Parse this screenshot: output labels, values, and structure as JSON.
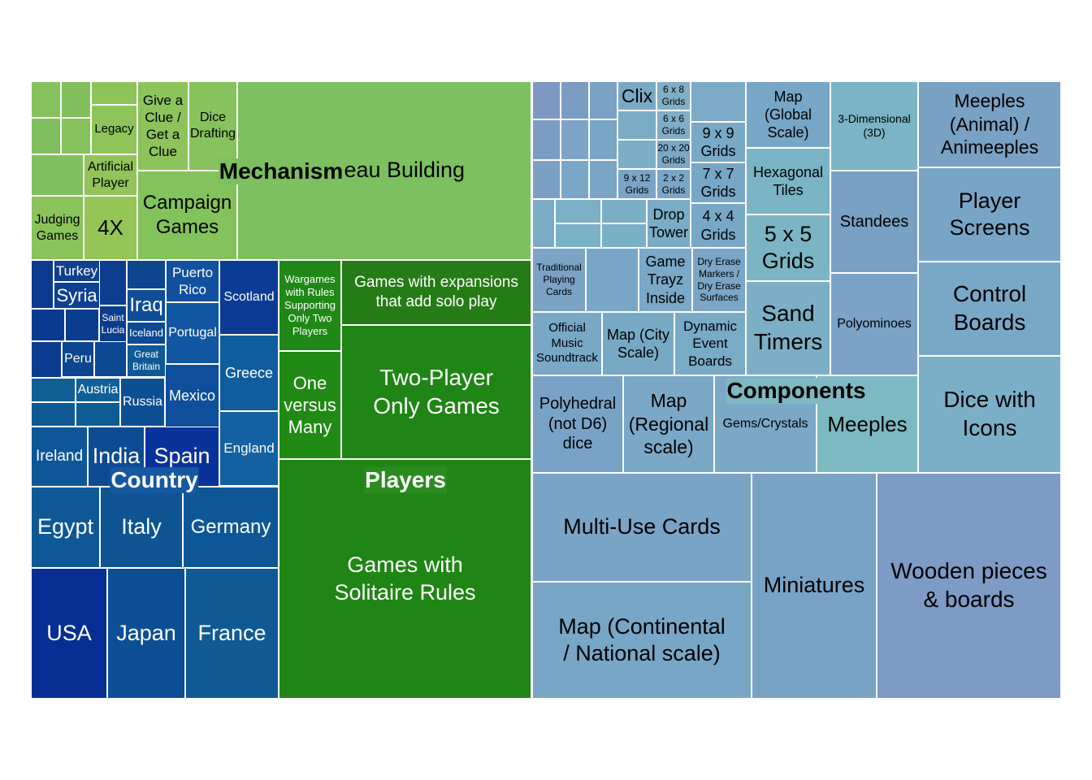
{
  "chart_data": {
    "type": "treemap",
    "title": "",
    "colors": {
      "Mechanism": "#7dc05f",
      "Country": "#0c4a8f",
      "Players": "#1f8514",
      "Components": "#79a3c6"
    },
    "groups": [
      {
        "name": "Mechanism",
        "leaves": [
          {
            "label": "Tableau Building"
          },
          {
            "label": "Give a Clue / Get a Clue"
          },
          {
            "label": "Dice Drafting"
          },
          {
            "label": "Legacy"
          },
          {
            "label": "Artificial Player"
          },
          {
            "label": "Campaign Games"
          },
          {
            "label": "Judging Games"
          },
          {
            "label": "4X"
          },
          {
            "label": ""
          },
          {
            "label": ""
          },
          {
            "label": ""
          },
          {
            "label": ""
          },
          {
            "label": ""
          },
          {
            "label": ""
          },
          {
            "label": ""
          }
        ]
      },
      {
        "name": "Country",
        "leaves": [
          {
            "label": "Turkey"
          },
          {
            "label": "Syria"
          },
          {
            "label": "Saint Lucia"
          },
          {
            "label": "Iraq"
          },
          {
            "label": "Puerto Rico"
          },
          {
            "label": "Scotland"
          },
          {
            "label": "Iceland"
          },
          {
            "label": "Portugal"
          },
          {
            "label": "Peru"
          },
          {
            "label": "Great Britain"
          },
          {
            "label": "Greece"
          },
          {
            "label": "Austria"
          },
          {
            "label": "Russia"
          },
          {
            "label": "Mexico"
          },
          {
            "label": "England"
          },
          {
            "label": "Ireland"
          },
          {
            "label": "India"
          },
          {
            "label": "Spain"
          },
          {
            "label": "Egypt"
          },
          {
            "label": "Italy"
          },
          {
            "label": "Germany"
          },
          {
            "label": "USA"
          },
          {
            "label": "Japan"
          },
          {
            "label": "France"
          },
          {
            "label": ""
          },
          {
            "label": ""
          },
          {
            "label": ""
          },
          {
            "label": ""
          },
          {
            "label": ""
          },
          {
            "label": ""
          },
          {
            "label": ""
          },
          {
            "label": ""
          },
          {
            "label": ""
          },
          {
            "label": ""
          }
        ]
      },
      {
        "name": "Players",
        "leaves": [
          {
            "label": "Wargames with Rules Supporting Only Two Players"
          },
          {
            "label": "Games with expansions that add solo play"
          },
          {
            "label": "One versus Many"
          },
          {
            "label": "Two-Player Only Games"
          },
          {
            "label": "Games with Solitaire Rules"
          }
        ]
      },
      {
        "name": "Components",
        "leaves": [
          {
            "label": "Clix"
          },
          {
            "label": "6 x 8 Grids"
          },
          {
            "label": "6 x 6 Grids"
          },
          {
            "label": "20 x 20 Grids"
          },
          {
            "label": "9 x 12 Grids"
          },
          {
            "label": "2 x 2 Grids"
          },
          {
            "label": "9 x 9 Grids"
          },
          {
            "label": "7 x 7 Grids"
          },
          {
            "label": "4 x 4 Grids"
          },
          {
            "label": "Map (Global Scale)"
          },
          {
            "label": "Hexagonal Tiles"
          },
          {
            "label": "5 x 5 Grids"
          },
          {
            "label": "Sand Timers"
          },
          {
            "label": "3-Dimensional (3D)"
          },
          {
            "label": "Standees"
          },
          {
            "label": "Polyominoes"
          },
          {
            "label": "Meeples (Animal) / Animeeples"
          },
          {
            "label": "Player Screens"
          },
          {
            "label": "Control Boards"
          },
          {
            "label": "Dice with Icons"
          },
          {
            "label": "Drop Tower"
          },
          {
            "label": "Game Trayz Inside"
          },
          {
            "label": "Dry Erase Markers / Dry Erase Surfaces"
          },
          {
            "label": "Traditional Playing Cards"
          },
          {
            "label": "Official Music Soundtrack"
          },
          {
            "label": "Map (City Scale)"
          },
          {
            "label": "Dynamic Event Boards"
          },
          {
            "label": "Polyhedral (not D6) dice"
          },
          {
            "label": "Map (Regional scale)"
          },
          {
            "label": "Gems/Crystals"
          },
          {
            "label": "Meeples"
          },
          {
            "label": "Multi-Use Cards"
          },
          {
            "label": "Map (Continental / National scale)"
          },
          {
            "label": "Miniatures"
          },
          {
            "label": "Wooden pieces & boards"
          },
          {
            "label": ""
          },
          {
            "label": ""
          },
          {
            "label": ""
          },
          {
            "label": ""
          },
          {
            "label": ""
          },
          {
            "label": ""
          },
          {
            "label": ""
          },
          {
            "label": ""
          },
          {
            "label": ""
          },
          {
            "label": ""
          },
          {
            "label": ""
          },
          {
            "label": ""
          },
          {
            "label": ""
          },
          {
            "label": ""
          },
          {
            "label": ""
          },
          {
            "label": ""
          },
          {
            "label": ""
          },
          {
            "label": ""
          }
        ]
      }
    ]
  }
}
